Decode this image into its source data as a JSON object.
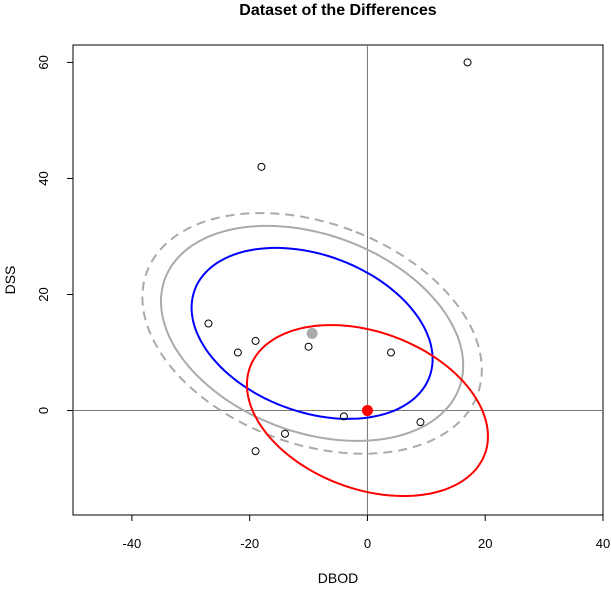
{
  "chart_data": {
    "type": "scatter",
    "title": "Dataset of the Differences",
    "xlabel": "DBOD",
    "ylabel": "DSS",
    "xlim": [
      -50,
      40
    ],
    "ylim": [
      -18,
      63
    ],
    "xticks": [
      -40,
      -20,
      0,
      20,
      40
    ],
    "yticks": [
      0,
      20,
      40,
      60
    ],
    "reference_lines": {
      "x": 0,
      "y": 0
    },
    "points": [
      {
        "x": 17,
        "y": 60
      },
      {
        "x": -18,
        "y": 42
      },
      {
        "x": -27,
        "y": 15
      },
      {
        "x": -19,
        "y": 12
      },
      {
        "x": -22,
        "y": 10
      },
      {
        "x": -10,
        "y": 11
      },
      {
        "x": 4,
        "y": 10
      },
      {
        "x": -4,
        "y": -1
      },
      {
        "x": 9,
        "y": -2
      },
      {
        "x": -14,
        "y": -4
      },
      {
        "x": -19,
        "y": -7
      }
    ],
    "markers": [
      {
        "name": "sample mean",
        "x": -9.4,
        "y": 13.3,
        "color": "#aaaaaa"
      },
      {
        "name": "origin",
        "x": 0,
        "y": 0,
        "color": "#ff0000"
      }
    ],
    "ellipses": [
      {
        "center": [
          -9.4,
          13.3
        ],
        "semi_axes": [
          19.0,
          30.0
        ],
        "angle_deg": 69,
        "color": "#aaaaaa",
        "style": "dashed"
      },
      {
        "center": [
          -9.4,
          13.3
        ],
        "semi_axes": [
          17.0,
          26.7
        ],
        "angle_deg": 69,
        "color": "#aaaaaa",
        "style": "solid"
      },
      {
        "center": [
          -9.4,
          13.3
        ],
        "semi_axes": [
          13.5,
          21.3
        ],
        "angle_deg": 69,
        "color": "#0000ff",
        "style": "solid"
      },
      {
        "center": [
          0,
          0
        ],
        "semi_axes": [
          13.5,
          21.3
        ],
        "angle_deg": 69,
        "color": "#ff0000",
        "style": "solid"
      }
    ]
  }
}
